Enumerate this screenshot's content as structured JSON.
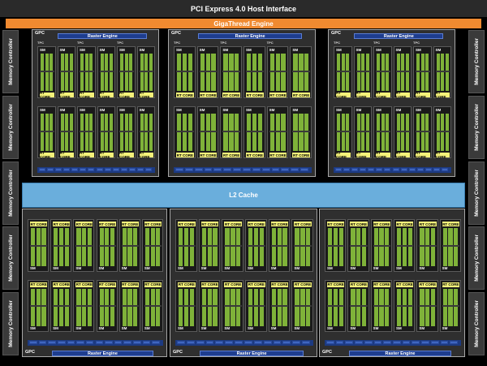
{
  "header": {
    "pcie_label": "PCI Express 4.0 Host Interface",
    "gigathread_label": "GigaThread Engine"
  },
  "cache": {
    "l2_label": "L2 Cache"
  },
  "memory_controller": {
    "label": "Memory Controller"
  },
  "gpc": {
    "label": "GPC",
    "raster_label": "Raster Engine",
    "tpc_label": "TPC",
    "polymorph_label": "PolyMorph Engine",
    "sm_label": "SM",
    "rt_label": "RT CORE"
  },
  "colors": {
    "gigathread": "#f08a30",
    "l2": "#6aaedc",
    "raster": "#1e3d8f",
    "rt_core": "#f5f27a",
    "cuda": "#7fb239"
  }
}
